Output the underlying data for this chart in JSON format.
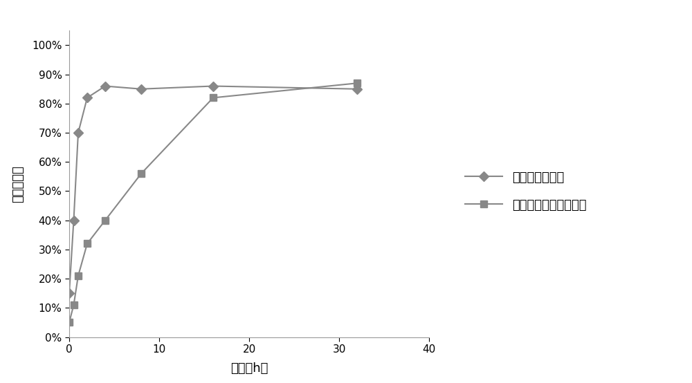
{
  "series1_label": "内水相为纯化水",
  "series2_label": "内水相为泊洛沙姆溶液",
  "series1_x": [
    0,
    0.5,
    1,
    2,
    4,
    8,
    16,
    32
  ],
  "series1_y": [
    0.15,
    0.4,
    0.7,
    0.82,
    0.86,
    0.85,
    0.86,
    0.85
  ],
  "series2_x": [
    0,
    0.5,
    1,
    2,
    4,
    8,
    16,
    32
  ],
  "series2_y": [
    0.05,
    0.11,
    0.21,
    0.32,
    0.4,
    0.56,
    0.82,
    0.87
  ],
  "xlabel": "时间（h）",
  "ylabel": "药物释放率",
  "xlim": [
    0,
    40
  ],
  "ylim": [
    0,
    1.05
  ],
  "xticks": [
    0,
    10,
    20,
    30,
    40
  ],
  "yticks": [
    0.0,
    0.1,
    0.2,
    0.3,
    0.4,
    0.5,
    0.6,
    0.7,
    0.8,
    0.9,
    1.0
  ],
  "line_color": "#888888",
  "marker1": "D",
  "marker2": "s",
  "markersize": 7,
  "linewidth": 1.5,
  "background_color": "#ffffff"
}
